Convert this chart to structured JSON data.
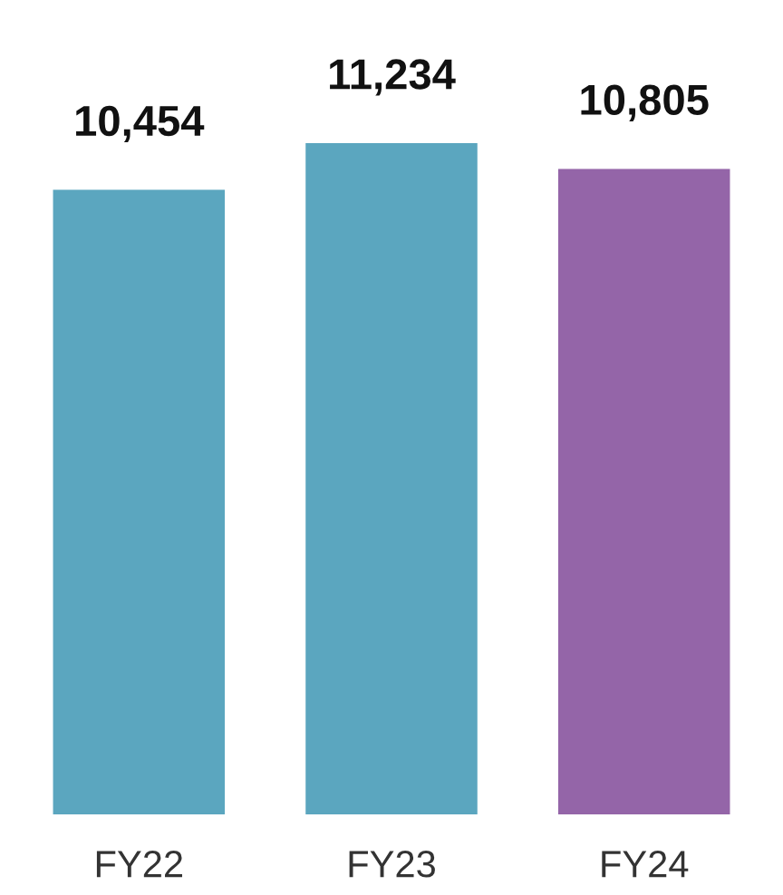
{
  "chart_data": {
    "type": "bar",
    "categories": [
      "FY22",
      "FY23",
      "FY24"
    ],
    "values": [
      10454,
      11234,
      10805
    ],
    "colors": [
      "#5ba6bf",
      "#5ba6bf",
      "#9465a8"
    ],
    "value_labels": [
      "10,454",
      "11,234",
      "10,805"
    ],
    "grid": false,
    "legend": false
  }
}
